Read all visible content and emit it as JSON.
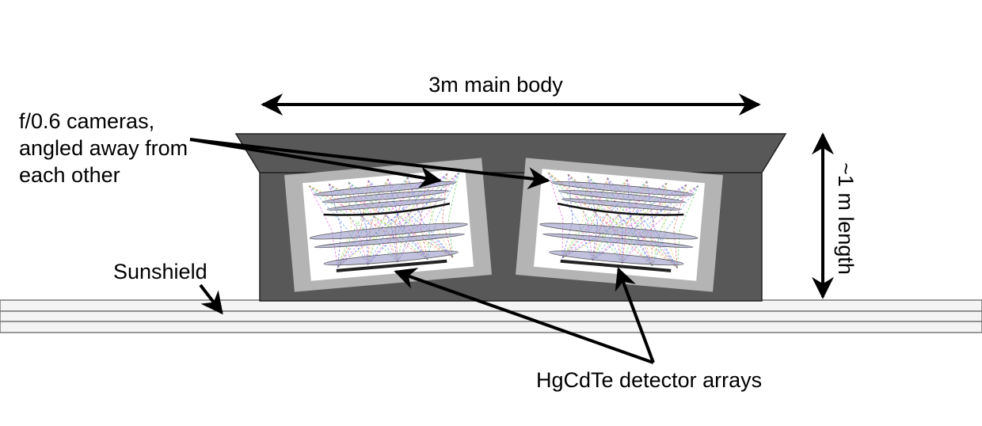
{
  "labels": {
    "main_body": "3m main body",
    "cameras": [
      "f/0.6 cameras,",
      "angled away from",
      "each other"
    ],
    "length": "~1 m length",
    "sunshield": "Sunshield",
    "detectors": "HgCdTe detector arrays"
  },
  "colors": {
    "body": "#585858",
    "body_outline": "#222222",
    "camera_frame": "#b4b4b4",
    "sunshield": "#f4f4f4",
    "sunshield_line": "#7a7a7a",
    "ray_colors": [
      "#e23ad8",
      "#3a8ae2",
      "#3ac83a",
      "#e23a3a",
      "#c8c83a",
      "#3a3ae2"
    ],
    "lens": "#9a9ac8",
    "arrow": "#000000"
  }
}
